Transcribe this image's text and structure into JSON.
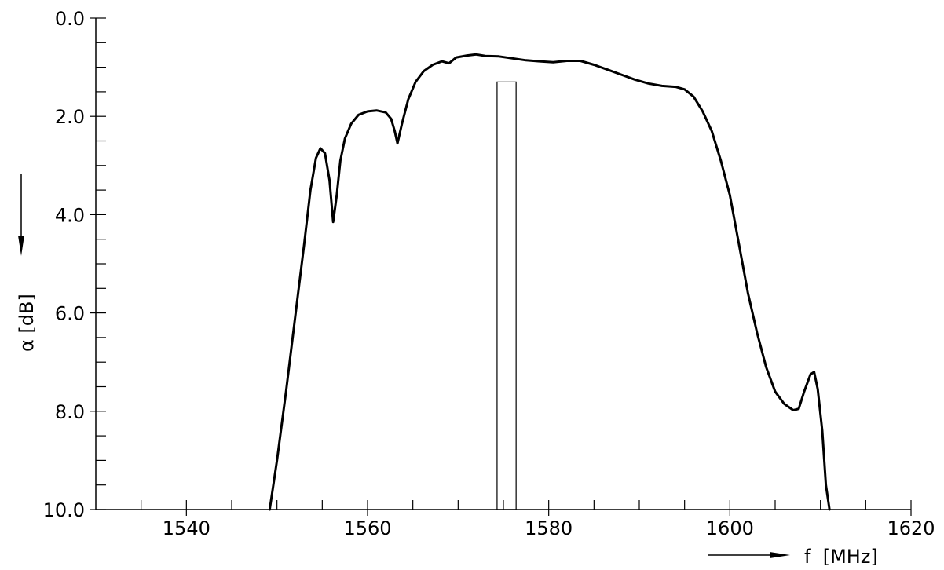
{
  "chart_data": {
    "type": "line",
    "title": "",
    "xlabel": "f  [MHz]",
    "ylabel": "α  [dB]",
    "xlim": [
      1530,
      1620
    ],
    "ylim": [
      0,
      10
    ],
    "y_inverted": true,
    "x_ticks": [
      1540,
      1560,
      1580,
      1600,
      1620
    ],
    "x_tick_labels": [
      "1540",
      "1560",
      "1580",
      "1600",
      "1620"
    ],
    "y_ticks": [
      0,
      2,
      4,
      6,
      8,
      10
    ],
    "y_tick_labels": [
      "0.0",
      "2.0",
      "4.0",
      "6.0",
      "8.0",
      "10.0"
    ],
    "y_minor_step": 0.5,
    "x_minor_step": 5,
    "grid": false,
    "series": [
      {
        "values": [
          [
            1549.2,
            10.0
          ],
          [
            1550.0,
            9.0
          ],
          [
            1551.0,
            7.6
          ],
          [
            1552.0,
            6.1
          ],
          [
            1553.0,
            4.6
          ],
          [
            1553.7,
            3.5
          ],
          [
            1554.3,
            2.85
          ],
          [
            1554.8,
            2.65
          ],
          [
            1555.3,
            2.75
          ],
          [
            1555.8,
            3.3
          ],
          [
            1556.2,
            4.15
          ],
          [
            1556.6,
            3.6
          ],
          [
            1557.0,
            2.9
          ],
          [
            1557.5,
            2.45
          ],
          [
            1558.2,
            2.15
          ],
          [
            1559.0,
            1.97
          ],
          [
            1560.0,
            1.9
          ],
          [
            1561.0,
            1.88
          ],
          [
            1562.0,
            1.92
          ],
          [
            1562.6,
            2.05
          ],
          [
            1563.0,
            2.3
          ],
          [
            1563.3,
            2.55
          ],
          [
            1563.8,
            2.15
          ],
          [
            1564.5,
            1.65
          ],
          [
            1565.3,
            1.3
          ],
          [
            1566.2,
            1.08
          ],
          [
            1567.2,
            0.95
          ],
          [
            1568.2,
            0.88
          ],
          [
            1569.0,
            0.92
          ],
          [
            1569.8,
            0.8
          ],
          [
            1571.0,
            0.76
          ],
          [
            1572.0,
            0.74
          ],
          [
            1573.0,
            0.77
          ],
          [
            1574.5,
            0.78
          ],
          [
            1576.0,
            0.82
          ],
          [
            1577.5,
            0.86
          ],
          [
            1579.0,
            0.88
          ],
          [
            1580.5,
            0.9
          ],
          [
            1582.0,
            0.87
          ],
          [
            1583.5,
            0.87
          ],
          [
            1585.0,
            0.95
          ],
          [
            1586.5,
            1.05
          ],
          [
            1588.0,
            1.15
          ],
          [
            1589.5,
            1.25
          ],
          [
            1591.0,
            1.33
          ],
          [
            1592.5,
            1.38
          ],
          [
            1594.0,
            1.4
          ],
          [
            1595.0,
            1.45
          ],
          [
            1596.0,
            1.6
          ],
          [
            1597.0,
            1.9
          ],
          [
            1598.0,
            2.3
          ],
          [
            1599.0,
            2.9
          ],
          [
            1600.0,
            3.6
          ],
          [
            1601.0,
            4.6
          ],
          [
            1602.0,
            5.6
          ],
          [
            1603.0,
            6.4
          ],
          [
            1604.0,
            7.1
          ],
          [
            1605.0,
            7.6
          ],
          [
            1606.0,
            7.85
          ],
          [
            1607.0,
            7.98
          ],
          [
            1607.6,
            7.95
          ],
          [
            1608.2,
            7.6
          ],
          [
            1608.9,
            7.25
          ],
          [
            1609.3,
            7.2
          ],
          [
            1609.7,
            7.55
          ],
          [
            1610.2,
            8.4
          ],
          [
            1610.6,
            9.5
          ],
          [
            1611.0,
            10.0
          ]
        ]
      }
    ],
    "marker_rect": {
      "x0": 1574.3,
      "x1": 1576.4,
      "y_top": 1.3,
      "y_bottom": 10.0
    }
  }
}
